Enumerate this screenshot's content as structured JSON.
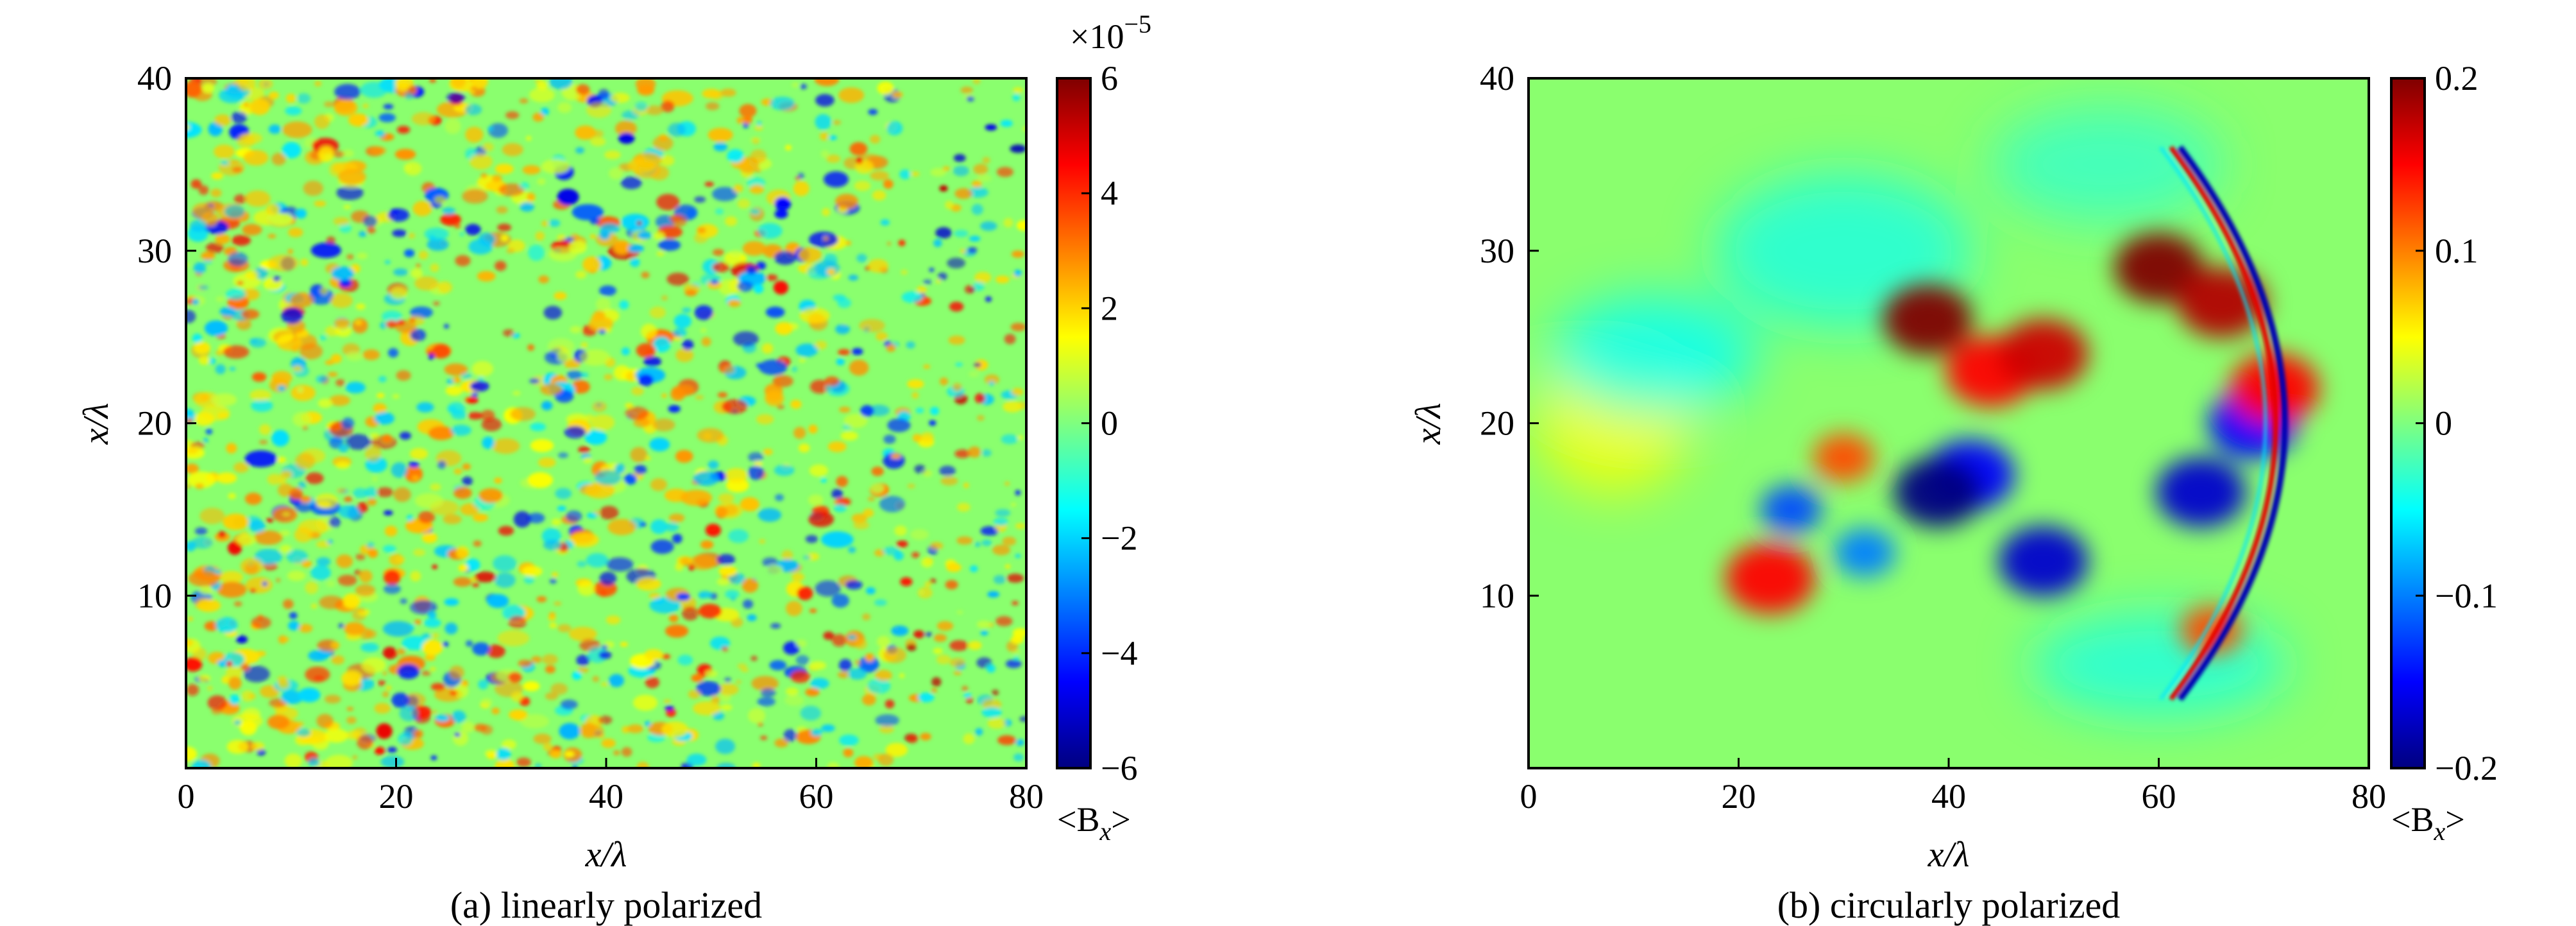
{
  "colorscale": {
    "name": "jet",
    "stops": [
      "#00007f",
      "#0000ff",
      "#007fff",
      "#00ffff",
      "#7fff7f",
      "#ffff00",
      "#ff7f00",
      "#ff0000",
      "#7f0000"
    ]
  },
  "chart_data": [
    {
      "type": "heatmap",
      "panel": "a",
      "caption": "(a) linearly polarized",
      "xlabel": "x/λ",
      "ylabel": "x/λ",
      "xlim": [
        0,
        80
      ],
      "ylim": [
        0,
        40
      ],
      "x_ticks": [
        0,
        20,
        40,
        60,
        80
      ],
      "y_ticks": [
        10,
        20,
        30,
        40
      ],
      "x_tick_labels": [
        "0",
        "20",
        "40",
        "60",
        "80"
      ],
      "y_tick_labels": [
        "10",
        "20",
        "30",
        "40"
      ],
      "colorbar": {
        "label": "<B",
        "label_sub": "x",
        "label_close": ">",
        "range": [
          -6,
          6
        ],
        "ticks": [
          -6,
          -4,
          -2,
          0,
          2,
          4,
          6
        ],
        "tick_labels": [
          "−6",
          "−4",
          "−2",
          "0",
          "2",
          "4",
          "6"
        ],
        "multiplier_base": "×10",
        "multiplier_exp": "−5"
      },
      "pattern": "Fine-grained random speckle of ±(2–6)×10⁻⁵ spread over the whole domain, denser and finer near x/λ ≈ 70–80."
    },
    {
      "type": "heatmap",
      "panel": "b",
      "caption": "(b) circularly polarized",
      "xlabel": "x/λ",
      "ylabel": "x/λ",
      "xlim": [
        0,
        80
      ],
      "ylim": [
        0,
        40
      ],
      "x_ticks": [
        0,
        20,
        40,
        60,
        80
      ],
      "y_ticks": [
        10,
        20,
        30,
        40
      ],
      "x_tick_labels": [
        "0",
        "20",
        "40",
        "60",
        "80"
      ],
      "y_tick_labels": [
        "10",
        "20",
        "30",
        "40"
      ],
      "colorbar": {
        "label": "<B",
        "label_sub": "x",
        "label_close": ">",
        "range": [
          -0.2,
          0.2
        ],
        "ticks": [
          -0.2,
          -0.1,
          0,
          0.1,
          0.2
        ],
        "tick_labels": [
          "−0.2",
          "−0.1",
          "0",
          "0.1",
          "0.2"
        ]
      },
      "features": [
        {
          "x": 38,
          "y": 26,
          "value": 0.2
        },
        {
          "x": 44,
          "y": 23,
          "value": 0.15
        },
        {
          "x": 49,
          "y": 24,
          "value": 0.17
        },
        {
          "x": 42,
          "y": 17,
          "value": -0.15
        },
        {
          "x": 39,
          "y": 16,
          "value": -0.2
        },
        {
          "x": 49,
          "y": 12,
          "value": -0.17
        },
        {
          "x": 60,
          "y": 29,
          "value": 0.2
        },
        {
          "x": 66,
          "y": 27,
          "value": 0.18
        },
        {
          "x": 64,
          "y": 16,
          "value": -0.17
        },
        {
          "x": 69,
          "y": 20,
          "value": -0.15
        },
        {
          "x": 30,
          "y": 18,
          "value": 0.12
        },
        {
          "x": 25,
          "y": 15,
          "value": -0.12
        },
        {
          "x": 23,
          "y": 11,
          "value": 0.15
        },
        {
          "x": 32,
          "y": 12.5,
          "value": -0.1
        },
        {
          "x": 65,
          "y": 8,
          "value": 0.12
        },
        {
          "x": 71,
          "y": 22,
          "value": 0.15
        }
      ]
    }
  ]
}
